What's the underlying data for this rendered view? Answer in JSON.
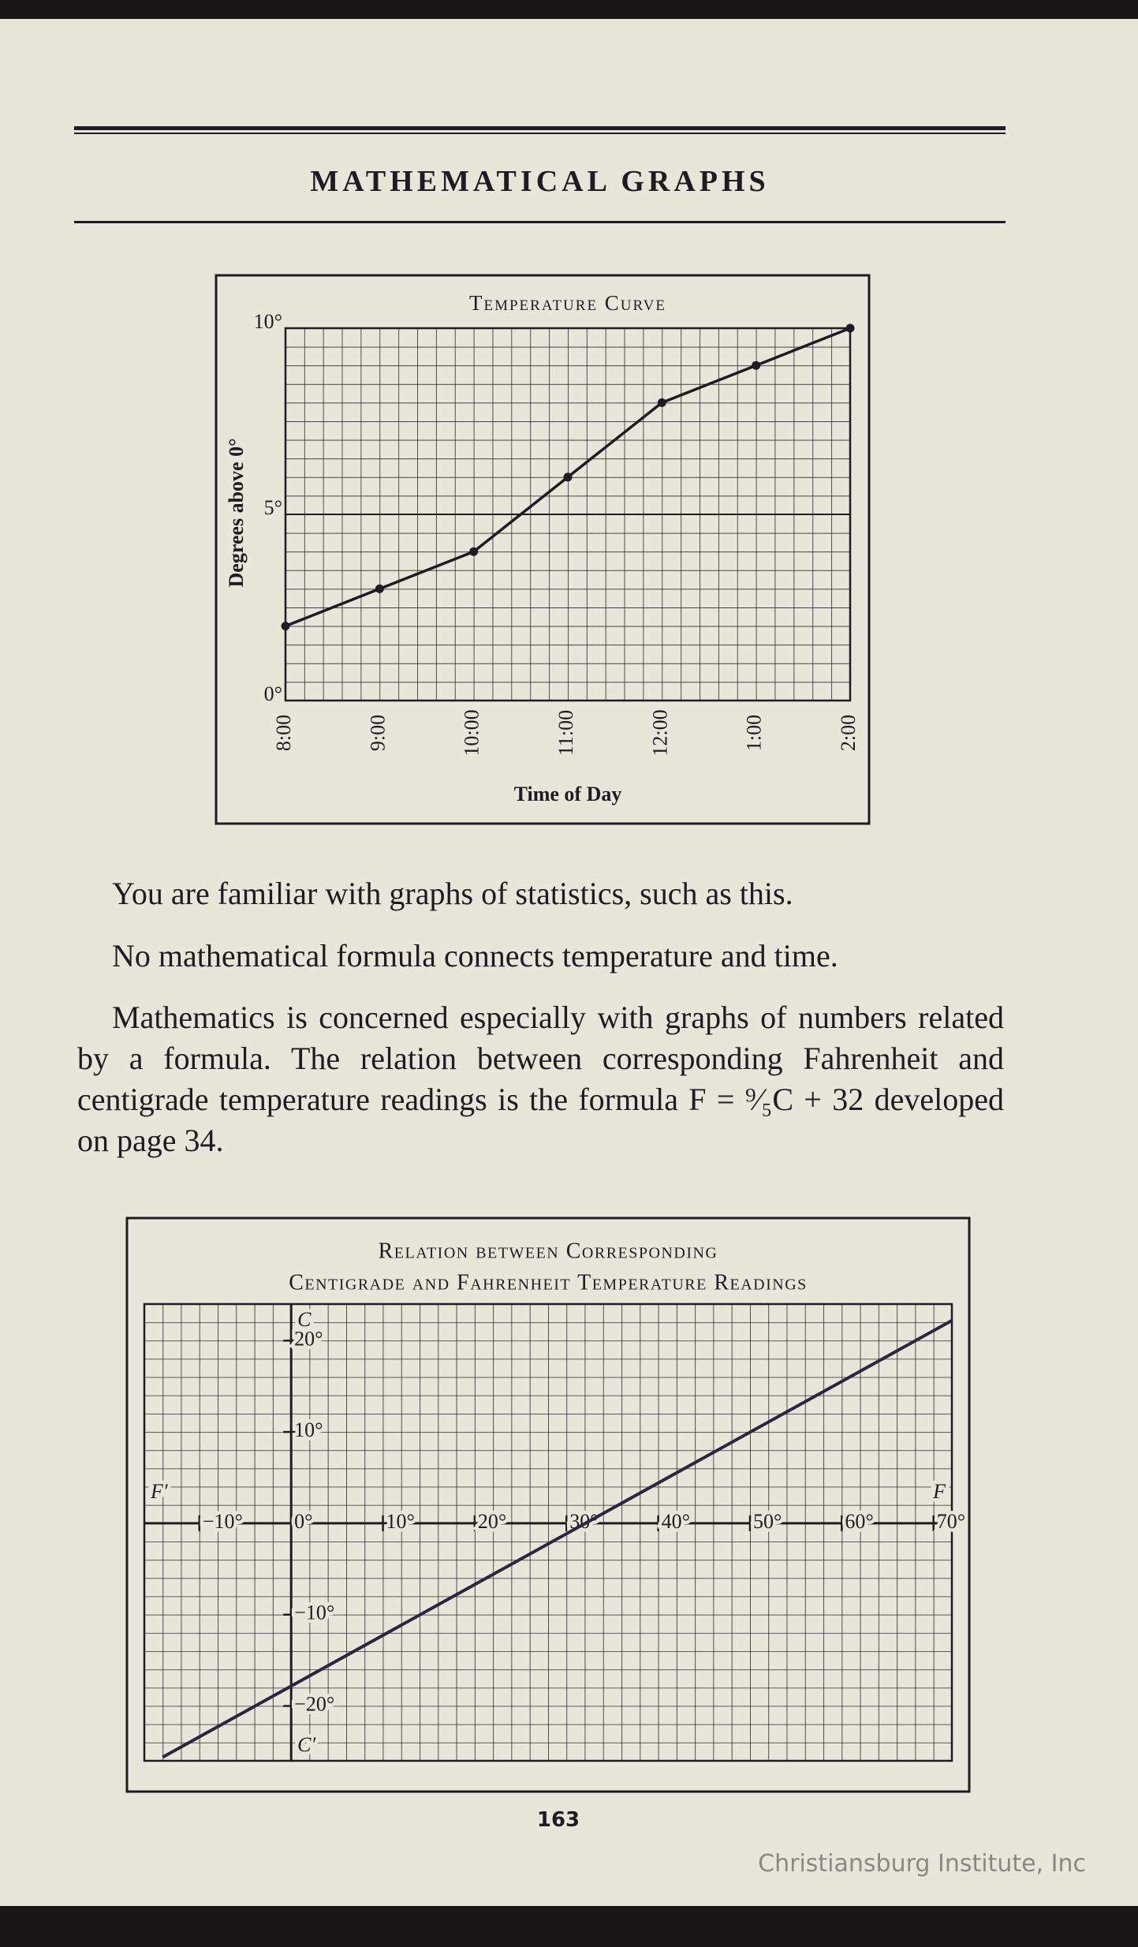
{
  "header": {
    "title": "MATHEMATICAL GRAPHS"
  },
  "paragraphs": [
    "You are familiar with graphs of statistics, such as this.",
    "No mathematical formula connects temperature and time.",
    "Mathematics is concerned especially with graphs of numbers related by a formula. The relation between corresponding Fahrenheit and centigrade temperature readings is the formula F = ⁹⁄₅C + 32 developed on page 34."
  ],
  "page_number": "163",
  "watermark": "Christiansburg Institute, Inc",
  "chart_data": [
    {
      "type": "line",
      "title": "Temperature Curve",
      "x_label": "Time of Day",
      "y_label": "Degrees above 0°",
      "categories": [
        "8:00",
        "9:00",
        "10:00",
        "11:00",
        "12:00",
        "1:00",
        "2:00"
      ],
      "values": [
        2,
        3,
        4,
        6,
        8,
        9,
        10
      ],
      "color": "#1e1b24",
      "markers": true,
      "ylim": [
        0,
        10
      ],
      "yticks": [
        {
          "value": 0,
          "label": "0°"
        },
        {
          "value": 5,
          "label": "5°"
        },
        {
          "value": 10,
          "label": "10°"
        }
      ],
      "grid": true
    },
    {
      "type": "line",
      "title": "Relation between Corresponding",
      "subtitle": "Centigrade and Fahrenheit Temperature Readings",
      "x": [
        -14,
        72
      ],
      "values": [
        -25.6,
        22.2
      ],
      "color": "#2a2540",
      "xlim": [
        -16,
        72
      ],
      "ylim": [
        -26,
        24
      ],
      "xticks": [
        {
          "value": -10,
          "label": "−10°"
        },
        {
          "value": 0,
          "label": "0°"
        },
        {
          "value": 10,
          "label": "10°"
        },
        {
          "value": 20,
          "label": "20°"
        },
        {
          "value": 30,
          "label": "30°"
        },
        {
          "value": 40,
          "label": "40°"
        },
        {
          "value": 50,
          "label": "50°"
        },
        {
          "value": 60,
          "label": "60°"
        },
        {
          "value": 70,
          "label": "70°"
        }
      ],
      "yticks": [
        {
          "value": -20,
          "label": "−20°"
        },
        {
          "value": -10,
          "label": "−10°"
        },
        {
          "value": 10,
          "label": "10°"
        },
        {
          "value": 20,
          "label": "20°"
        }
      ],
      "axis_labels": {
        "y_top": "C",
        "y_bottom": "C′",
        "x_left": "F′",
        "x_right": "F"
      },
      "grid": true
    }
  ]
}
